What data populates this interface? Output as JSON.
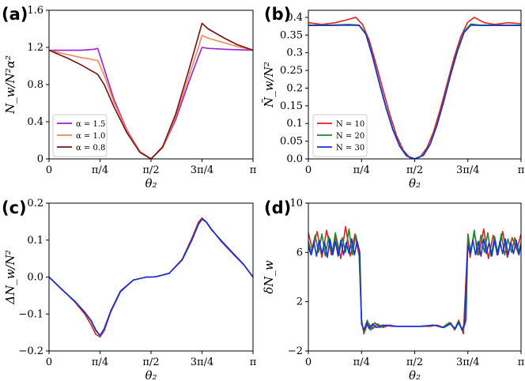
{
  "chart_data": [
    {
      "panel": "(a)",
      "type": "line",
      "xlabel": "θ₂",
      "ylabel": "N_w/N²α²",
      "xlim": [
        0,
        3.14159
      ],
      "ylim": [
        0,
        1.6
      ],
      "xticks": [
        {
          "value": 0,
          "label": "0"
        },
        {
          "value": 0.7854,
          "label": "π/4"
        },
        {
          "value": 1.5708,
          "label": "π/2"
        },
        {
          "value": 2.3562,
          "label": "3π/4"
        },
        {
          "value": 3.14159,
          "label": "π"
        }
      ],
      "yticks": [
        {
          "value": 0,
          "label": "0"
        },
        {
          "value": 0.4,
          "label": "0.4"
        },
        {
          "value": 0.8,
          "label": "0.8"
        },
        {
          "value": 1.2,
          "label": "1.2"
        },
        {
          "value": 1.6,
          "label": "1.6"
        }
      ],
      "legend_position": "lower-left",
      "series": [
        {
          "name": "α = 1.5",
          "color": "#9a1fd6",
          "x": [
            0,
            0.3,
            0.5,
            0.6,
            0.7,
            0.75,
            0.85,
            1.0,
            1.2,
            1.4,
            1.5708,
            1.75,
            1.95,
            2.15,
            2.3,
            2.3562,
            2.45,
            2.7,
            2.9,
            3.14159
          ],
          "y": [
            1.17,
            1.17,
            1.17,
            1.175,
            1.18,
            1.19,
            0.97,
            0.64,
            0.31,
            0.08,
            0,
            0.12,
            0.42,
            0.82,
            1.1,
            1.2,
            1.19,
            1.18,
            1.175,
            1.17
          ]
        },
        {
          "name": "α = 1.0",
          "color": "#f4865a",
          "x": [
            0,
            0.3,
            0.5,
            0.6,
            0.7,
            0.75,
            0.85,
            1.0,
            1.2,
            1.4,
            1.5708,
            1.75,
            1.95,
            2.15,
            2.3,
            2.3562,
            2.45,
            2.7,
            2.9,
            3.14159
          ],
          "y": [
            1.17,
            1.12,
            1.09,
            1.08,
            1.065,
            1.06,
            0.9,
            0.61,
            0.3,
            0.08,
            0,
            0.12,
            0.45,
            0.88,
            1.2,
            1.33,
            1.3,
            1.25,
            1.21,
            1.17
          ]
        },
        {
          "name": "α = 0.8",
          "color": "#7a1010",
          "x": [
            0,
            0.3,
            0.5,
            0.6,
            0.7,
            0.75,
            0.85,
            1.0,
            1.2,
            1.4,
            1.5708,
            1.75,
            1.95,
            2.15,
            2.3,
            2.3562,
            2.45,
            2.7,
            2.9,
            3.14159
          ],
          "y": [
            1.17,
            1.08,
            1.01,
            0.97,
            0.93,
            0.91,
            0.8,
            0.56,
            0.28,
            0.07,
            0,
            0.13,
            0.48,
            0.95,
            1.32,
            1.46,
            1.4,
            1.3,
            1.23,
            1.17
          ]
        }
      ]
    },
    {
      "panel": "(b)",
      "type": "line",
      "xlabel": "θ₂",
      "ylabel": "Ñ_w/N²",
      "xlim": [
        0,
        3.14159
      ],
      "ylim": [
        0,
        0.42
      ],
      "xticks": [
        {
          "value": 0,
          "label": "0"
        },
        {
          "value": 0.7854,
          "label": "π/4"
        },
        {
          "value": 1.5708,
          "label": "π/2"
        },
        {
          "value": 2.3562,
          "label": "3π/4"
        },
        {
          "value": 3.14159,
          "label": "π"
        }
      ],
      "yticks": [
        {
          "value": 0,
          "label": "0.0"
        },
        {
          "value": 0.05,
          "label": "0.05"
        },
        {
          "value": 0.1,
          "label": "0.1"
        },
        {
          "value": 0.15,
          "label": "0.15"
        },
        {
          "value": 0.2,
          "label": "0.2"
        },
        {
          "value": 0.25,
          "label": "0.25"
        },
        {
          "value": 0.3,
          "label": "0.3"
        },
        {
          "value": 0.35,
          "label": "0.35"
        },
        {
          "value": 0.4,
          "label": "0.4"
        }
      ],
      "legend_position": "lower-left",
      "series": [
        {
          "name": "N = 10",
          "color": "#e02020",
          "x": [
            0,
            0.2,
            0.4,
            0.55,
            0.7,
            0.8,
            0.9,
            1.0,
            1.1,
            1.2,
            1.3,
            1.4,
            1.5,
            1.5708,
            1.65,
            1.75,
            1.85,
            1.95,
            2.05,
            2.15,
            2.25,
            2.35,
            2.45,
            2.6,
            2.75,
            2.95,
            3.14159
          ],
          "y": [
            0.385,
            0.38,
            0.385,
            0.392,
            0.4,
            0.38,
            0.335,
            0.268,
            0.197,
            0.128,
            0.067,
            0.025,
            0.003,
            0,
            0.005,
            0.031,
            0.077,
            0.141,
            0.213,
            0.284,
            0.345,
            0.385,
            0.4,
            0.385,
            0.38,
            0.385,
            0.382
          ]
        },
        {
          "name": "N = 20",
          "color": "#1d8a2a",
          "x": [
            0,
            0.3,
            0.6,
            0.75,
            0.85,
            0.95,
            1.05,
            1.15,
            1.25,
            1.35,
            1.45,
            1.5708,
            1.7,
            1.8,
            1.9,
            2.0,
            2.1,
            2.2,
            2.3,
            2.4,
            2.55,
            2.85,
            3.14159
          ],
          "y": [
            0.378,
            0.378,
            0.38,
            0.378,
            0.355,
            0.29,
            0.215,
            0.145,
            0.083,
            0.036,
            0.009,
            0,
            0.011,
            0.042,
            0.097,
            0.164,
            0.238,
            0.306,
            0.36,
            0.381,
            0.378,
            0.378,
            0.378
          ]
        },
        {
          "name": "N = 30",
          "color": "#1a2fe0",
          "x": [
            0,
            0.3,
            0.6,
            0.75,
            0.85,
            0.95,
            1.05,
            1.15,
            1.25,
            1.35,
            1.45,
            1.5708,
            1.7,
            1.8,
            1.9,
            2.0,
            2.1,
            2.2,
            2.3,
            2.4,
            2.55,
            2.85,
            3.14159
          ],
          "y": [
            0.377,
            0.377,
            0.378,
            0.377,
            0.352,
            0.287,
            0.212,
            0.142,
            0.081,
            0.035,
            0.008,
            0,
            0.01,
            0.041,
            0.095,
            0.162,
            0.236,
            0.303,
            0.357,
            0.378,
            0.377,
            0.377,
            0.377
          ]
        }
      ]
    },
    {
      "panel": "(c)",
      "type": "line",
      "xlabel": "θ₂",
      "ylabel": "ΔN_w/N²",
      "xlim": [
        0,
        3.14159
      ],
      "ylim": [
        -0.2,
        0.2
      ],
      "xticks": [
        {
          "value": 0,
          "label": "0"
        },
        {
          "value": 0.7854,
          "label": "π/4"
        },
        {
          "value": 1.5708,
          "label": "π/2"
        },
        {
          "value": 2.3562,
          "label": "3π/4"
        },
        {
          "value": 3.14159,
          "label": "π"
        }
      ],
      "yticks": [
        {
          "value": -0.2,
          "label": "−0.2"
        },
        {
          "value": -0.1,
          "label": "−0.1"
        },
        {
          "value": 0,
          "label": "0.0"
        },
        {
          "value": 0.1,
          "label": "0.1"
        },
        {
          "value": 0.2,
          "label": "0.2"
        }
      ],
      "series": [
        {
          "name": "N = 10",
          "color": "#e02020",
          "x": [
            0,
            0.2,
            0.4,
            0.55,
            0.65,
            0.72,
            0.7854,
            0.85,
            0.95,
            1.1,
            1.3,
            1.5,
            1.5708,
            1.65,
            1.85,
            2.05,
            2.2,
            2.3,
            2.3562,
            2.42,
            2.5,
            2.65,
            2.85,
            3.0,
            3.14159
          ],
          "y": [
            0,
            -0.033,
            -0.068,
            -0.1,
            -0.13,
            -0.155,
            -0.162,
            -0.145,
            -0.095,
            -0.04,
            -0.008,
            0,
            0,
            0.001,
            0.01,
            0.048,
            0.105,
            0.148,
            0.16,
            0.15,
            0.128,
            0.1,
            0.062,
            0.034,
            0
          ]
        },
        {
          "name": "N = 20",
          "color": "#1d8a2a",
          "x": [
            0,
            0.2,
            0.4,
            0.55,
            0.65,
            0.72,
            0.7854,
            0.85,
            0.95,
            1.1,
            1.3,
            1.5,
            1.5708,
            1.65,
            1.85,
            2.05,
            2.2,
            2.3,
            2.3562,
            2.42,
            2.5,
            2.65,
            2.85,
            3.0,
            3.14159
          ],
          "y": [
            0,
            -0.034,
            -0.066,
            -0.095,
            -0.12,
            -0.145,
            -0.158,
            -0.14,
            -0.092,
            -0.038,
            -0.008,
            0,
            0,
            0.001,
            0.01,
            0.046,
            0.1,
            0.143,
            0.157,
            0.15,
            0.13,
            0.098,
            0.06,
            0.033,
            0
          ]
        },
        {
          "name": "N = 30",
          "color": "#1a2fe0",
          "x": [
            0,
            0.2,
            0.4,
            0.55,
            0.65,
            0.72,
            0.7854,
            0.85,
            0.95,
            1.1,
            1.3,
            1.5,
            1.5708,
            1.65,
            1.85,
            2.05,
            2.2,
            2.3,
            2.3562,
            2.42,
            2.5,
            2.65,
            2.85,
            3.0,
            3.14159
          ],
          "y": [
            0,
            -0.034,
            -0.066,
            -0.095,
            -0.118,
            -0.143,
            -0.158,
            -0.14,
            -0.092,
            -0.038,
            -0.008,
            0,
            0,
            0.001,
            0.01,
            0.046,
            0.1,
            0.142,
            0.157,
            0.149,
            0.13,
            0.097,
            0.06,
            0.033,
            0
          ]
        }
      ]
    },
    {
      "panel": "(d)",
      "type": "line",
      "xlabel": "θ₂",
      "ylabel": "δN_w",
      "xlim": [
        0,
        3.14159
      ],
      "ylim": [
        -2,
        10
      ],
      "xticks": [
        {
          "value": 0,
          "label": "0"
        },
        {
          "value": 0.7854,
          "label": "π/4"
        },
        {
          "value": 1.5708,
          "label": "π/2"
        },
        {
          "value": 2.3562,
          "label": "3π/4"
        },
        {
          "value": 3.14159,
          "label": "π"
        }
      ],
      "yticks": [
        {
          "value": -2,
          "label": "−2"
        },
        {
          "value": 2,
          "label": "2"
        },
        {
          "value": 6,
          "label": "6"
        },
        {
          "value": 10,
          "label": "10"
        }
      ],
      "series": [
        {
          "name": "N = 10",
          "color": "#e02020",
          "x": [
            0,
            0.06,
            0.13,
            0.2,
            0.27,
            0.34,
            0.41,
            0.48,
            0.55,
            0.62,
            0.69,
            0.75,
            0.7854,
            0.82,
            0.88,
            0.95,
            1.02,
            1.1,
            1.2,
            1.3,
            1.4,
            1.5,
            1.6,
            1.7,
            1.8,
            1.9,
            2.0,
            2.1,
            2.16,
            2.22,
            2.29,
            2.3562,
            2.39,
            2.45,
            2.52,
            2.59,
            2.66,
            2.73,
            2.8,
            2.87,
            2.94,
            3.01,
            3.08,
            3.14159
          ],
          "y": [
            7.6,
            6.2,
            7.7,
            5.6,
            7.8,
            5.8,
            7.3,
            5.5,
            8.1,
            5.7,
            7.5,
            5.7,
            0.6,
            -0.6,
            0.3,
            -0.2,
            0.2,
            -0.1,
            0.1,
            0,
            0,
            0,
            0,
            0,
            0,
            0.1,
            -0.1,
            0.3,
            -0.3,
            0.5,
            -0.6,
            7.1,
            5.6,
            7.6,
            5.8,
            7.9,
            5.5,
            7.4,
            5.8,
            7.7,
            5.6,
            7.2,
            6.2,
            7.5
          ]
        },
        {
          "name": "N = 20",
          "color": "#1d8a2a",
          "x": [
            0,
            0.05,
            0.1,
            0.15,
            0.2,
            0.25,
            0.3,
            0.35,
            0.4,
            0.45,
            0.5,
            0.55,
            0.6,
            0.65,
            0.7,
            0.75,
            0.7854,
            0.82,
            0.87,
            0.92,
            0.98,
            1.05,
            1.15,
            1.3,
            1.5,
            1.7,
            1.85,
            1.98,
            2.08,
            2.16,
            2.22,
            2.28,
            2.33,
            2.3562,
            2.4,
            2.45,
            2.5,
            2.55,
            2.6,
            2.65,
            2.7,
            2.75,
            2.8,
            2.85,
            2.9,
            2.95,
            3.0,
            3.05,
            3.1,
            3.14159
          ],
          "y": [
            6.9,
            5.9,
            7.4,
            6.0,
            7.5,
            5.7,
            7.3,
            5.9,
            7.6,
            5.8,
            7.2,
            6.0,
            7.9,
            5.8,
            7.4,
            6.2,
            0.4,
            -0.5,
            0.5,
            -0.3,
            0.3,
            -0.1,
            0.1,
            0,
            0,
            0,
            0.1,
            -0.1,
            0.3,
            -0.2,
            0.4,
            -0.4,
            0.5,
            7.5,
            6.0,
            7.8,
            5.8,
            7.4,
            6.0,
            7.6,
            5.7,
            7.3,
            5.9,
            7.5,
            5.8,
            7.1,
            6.0,
            7.2,
            5.9,
            6.8
          ]
        },
        {
          "name": "N = 30",
          "color": "#1a2fe0",
          "x": [
            0,
            0.04,
            0.08,
            0.12,
            0.16,
            0.2,
            0.24,
            0.28,
            0.32,
            0.36,
            0.4,
            0.44,
            0.48,
            0.52,
            0.56,
            0.6,
            0.64,
            0.68,
            0.72,
            0.76,
            0.7854,
            0.82,
            0.86,
            0.9,
            0.95,
            1.0,
            1.1,
            1.25,
            1.45,
            1.65,
            1.85,
            2.0,
            2.1,
            2.17,
            2.22,
            2.27,
            2.31,
            2.3562,
            2.39,
            2.43,
            2.47,
            2.51,
            2.55,
            2.59,
            2.63,
            2.67,
            2.71,
            2.75,
            2.79,
            2.83,
            2.87,
            2.91,
            2.95,
            2.99,
            3.03,
            3.07,
            3.11,
            3.14159
          ],
          "y": [
            6.5,
            5.8,
            6.9,
            5.7,
            7.0,
            5.9,
            6.8,
            5.6,
            7.1,
            5.8,
            6.9,
            5.7,
            7.0,
            5.8,
            6.8,
            5.9,
            7.1,
            5.8,
            6.9,
            6.0,
            0.2,
            -0.3,
            0.3,
            -0.2,
            0.2,
            -0.1,
            0.1,
            0,
            0,
            0,
            0.1,
            -0.1,
            0.2,
            -0.2,
            0.3,
            -0.3,
            0.3,
            6.6,
            5.9,
            7.0,
            5.8,
            6.9,
            5.7,
            7.1,
            5.9,
            6.8,
            5.7,
            7.0,
            5.8,
            6.9,
            5.9,
            7.1,
            5.8,
            6.8,
            5.9,
            7.0,
            5.8,
            6.6
          ]
        }
      ]
    }
  ]
}
